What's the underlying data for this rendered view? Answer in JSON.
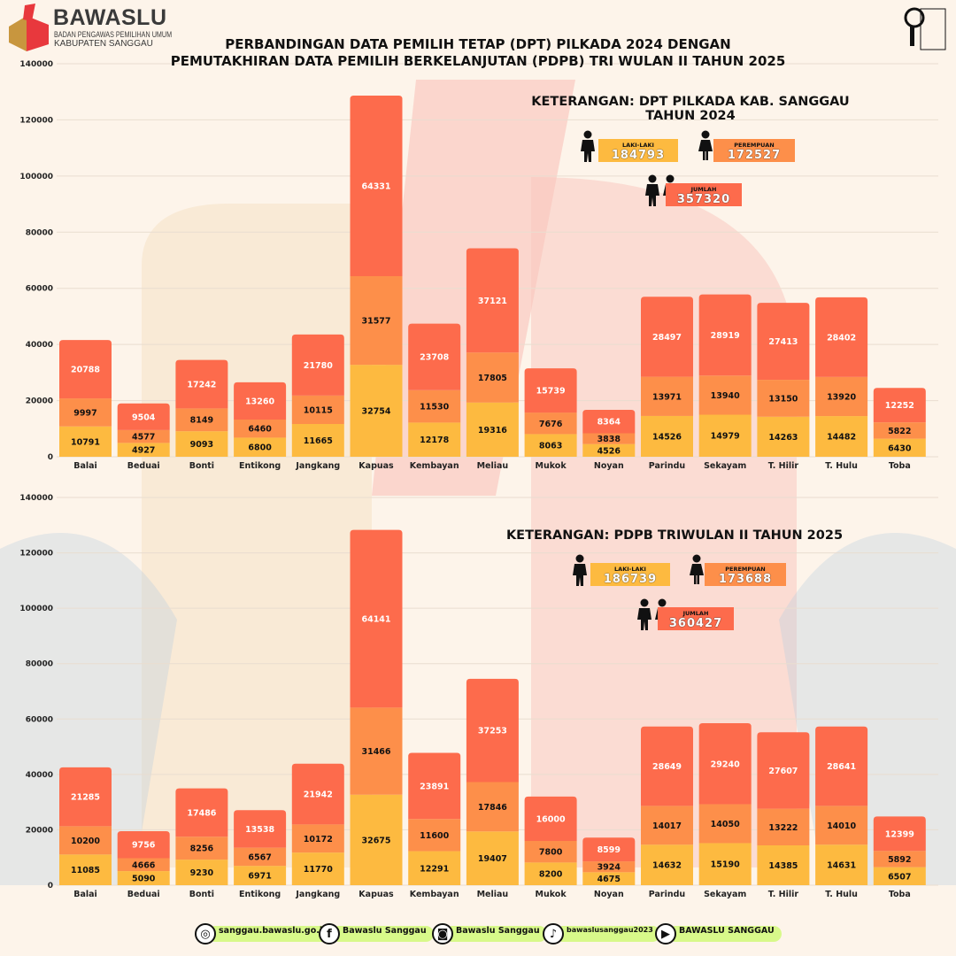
{
  "header": {
    "logo_name": "BAWASLU",
    "logo_subtitle": "BADAN PENGAWAS PEMILIHAN UMUM",
    "logo_region": "KABUPATEN SANGGAU",
    "right_logo": "AYO AWASI BERSAMA",
    "title_line1": "PERBANDINGAN DATA PEMILIH TETAP (DPT) PILKADA 2024 DENGAN",
    "title_line2": "PEMUTAKHIRAN DATA PEMILIH BERKELANJUTAN (PDPB) TRI WULAN II TAHUN 2025"
  },
  "legend1": {
    "title_line1": "KETERANGAN: DPT PILKADA KAB. SANGGAU",
    "title_line2": "TAHUN 2024",
    "laki_label": "LAKI-LAKI",
    "laki_value": "184793",
    "perempuan_label": "PEREMPUAN",
    "perempuan_value": "172527",
    "jumlah_label": "JUMLAH",
    "jumlah_value": "357320"
  },
  "legend2": {
    "title_line1": "KETERANGAN: PDPB TRIWULAN II TAHUN 2025",
    "laki_label": "LAKI-LAKI",
    "laki_value": "186739",
    "perempuan_label": "PEREMPUAN",
    "perempuan_value": "173688",
    "jumlah_label": "JUMLAH",
    "jumlah_value": "360427"
  },
  "colors": {
    "laki": "#fdba40",
    "perempuan": "#fd8f4a",
    "jumlah": "#fd6b4c",
    "background": "#fdf4ea"
  },
  "chart_data": [
    {
      "type": "bar",
      "stacked": true,
      "ylim": [
        0,
        140000
      ],
      "yticks": [
        0,
        20000,
        40000,
        60000,
        80000,
        100000,
        120000,
        140000
      ],
      "grid": true,
      "categories": [
        "Balai",
        "Beduai",
        "Bonti",
        "Entikong",
        "Jangkang",
        "Kapuas",
        "Kembayan",
        "Meliau",
        "Mukok",
        "Noyan",
        "Parindu",
        "Sekayam",
        "T. Hilir",
        "T. Hulu",
        "Toba"
      ],
      "series": [
        {
          "color": "#fdba40",
          "values": [
            10791,
            4927,
            9093,
            6800,
            11665,
            32754,
            12178,
            19316,
            8063,
            4526,
            14526,
            14979,
            14263,
            14482,
            6430
          ]
        },
        {
          "color": "#fd8f4a",
          "values": [
            9997,
            4577,
            8149,
            6460,
            10115,
            31577,
            11530,
            17805,
            7676,
            3838,
            13971,
            13940,
            13150,
            13920,
            5822
          ]
        },
        {
          "color": "#fd6b4c",
          "values": [
            20788,
            9504,
            17242,
            13260,
            21780,
            64331,
            23708,
            37121,
            15739,
            8364,
            28497,
            28919,
            27413,
            28402,
            12252
          ]
        }
      ]
    },
    {
      "type": "bar",
      "stacked": true,
      "ylim": [
        0,
        140000
      ],
      "yticks": [
        0,
        20000,
        40000,
        60000,
        80000,
        100000,
        120000,
        140000
      ],
      "grid": true,
      "categories": [
        "Balai",
        "Beduai",
        "Bonti",
        "Entikong",
        "Jangkang",
        "Kapuas",
        "Kembayan",
        "Meliau",
        "Mukok",
        "Noyan",
        "Parindu",
        "Sekayam",
        "T. Hilir",
        "T. Hulu",
        "Toba"
      ],
      "series": [
        {
          "color": "#fdba40",
          "values": [
            11085,
            5090,
            9230,
            6971,
            11770,
            32675,
            12291,
            19407,
            8200,
            4675,
            14632,
            15190,
            14385,
            14631,
            6507
          ]
        },
        {
          "color": "#fd8f4a",
          "values": [
            10200,
            4666,
            8256,
            6567,
            10172,
            31466,
            11600,
            17846,
            7800,
            3924,
            14017,
            14050,
            13222,
            14010,
            5892
          ]
        },
        {
          "color": "#fd6b4c",
          "values": [
            21285,
            9756,
            17486,
            13538,
            21942,
            64141,
            23891,
            37253,
            16000,
            8599,
            28649,
            29240,
            27607,
            28641,
            12399
          ]
        }
      ]
    }
  ],
  "footer": [
    {
      "icon": "globe-icon",
      "text": "sanggau.bawaslu.go.id"
    },
    {
      "icon": "facebook-icon",
      "text": "Bawaslu Sanggau"
    },
    {
      "icon": "instagram-icon",
      "text": "Bawaslu Sanggau"
    },
    {
      "icon": "tiktok-icon",
      "text": "bawaslusanggau2023"
    },
    {
      "icon": "youtube-icon",
      "text": "BAWASLU SANGGAU"
    }
  ]
}
